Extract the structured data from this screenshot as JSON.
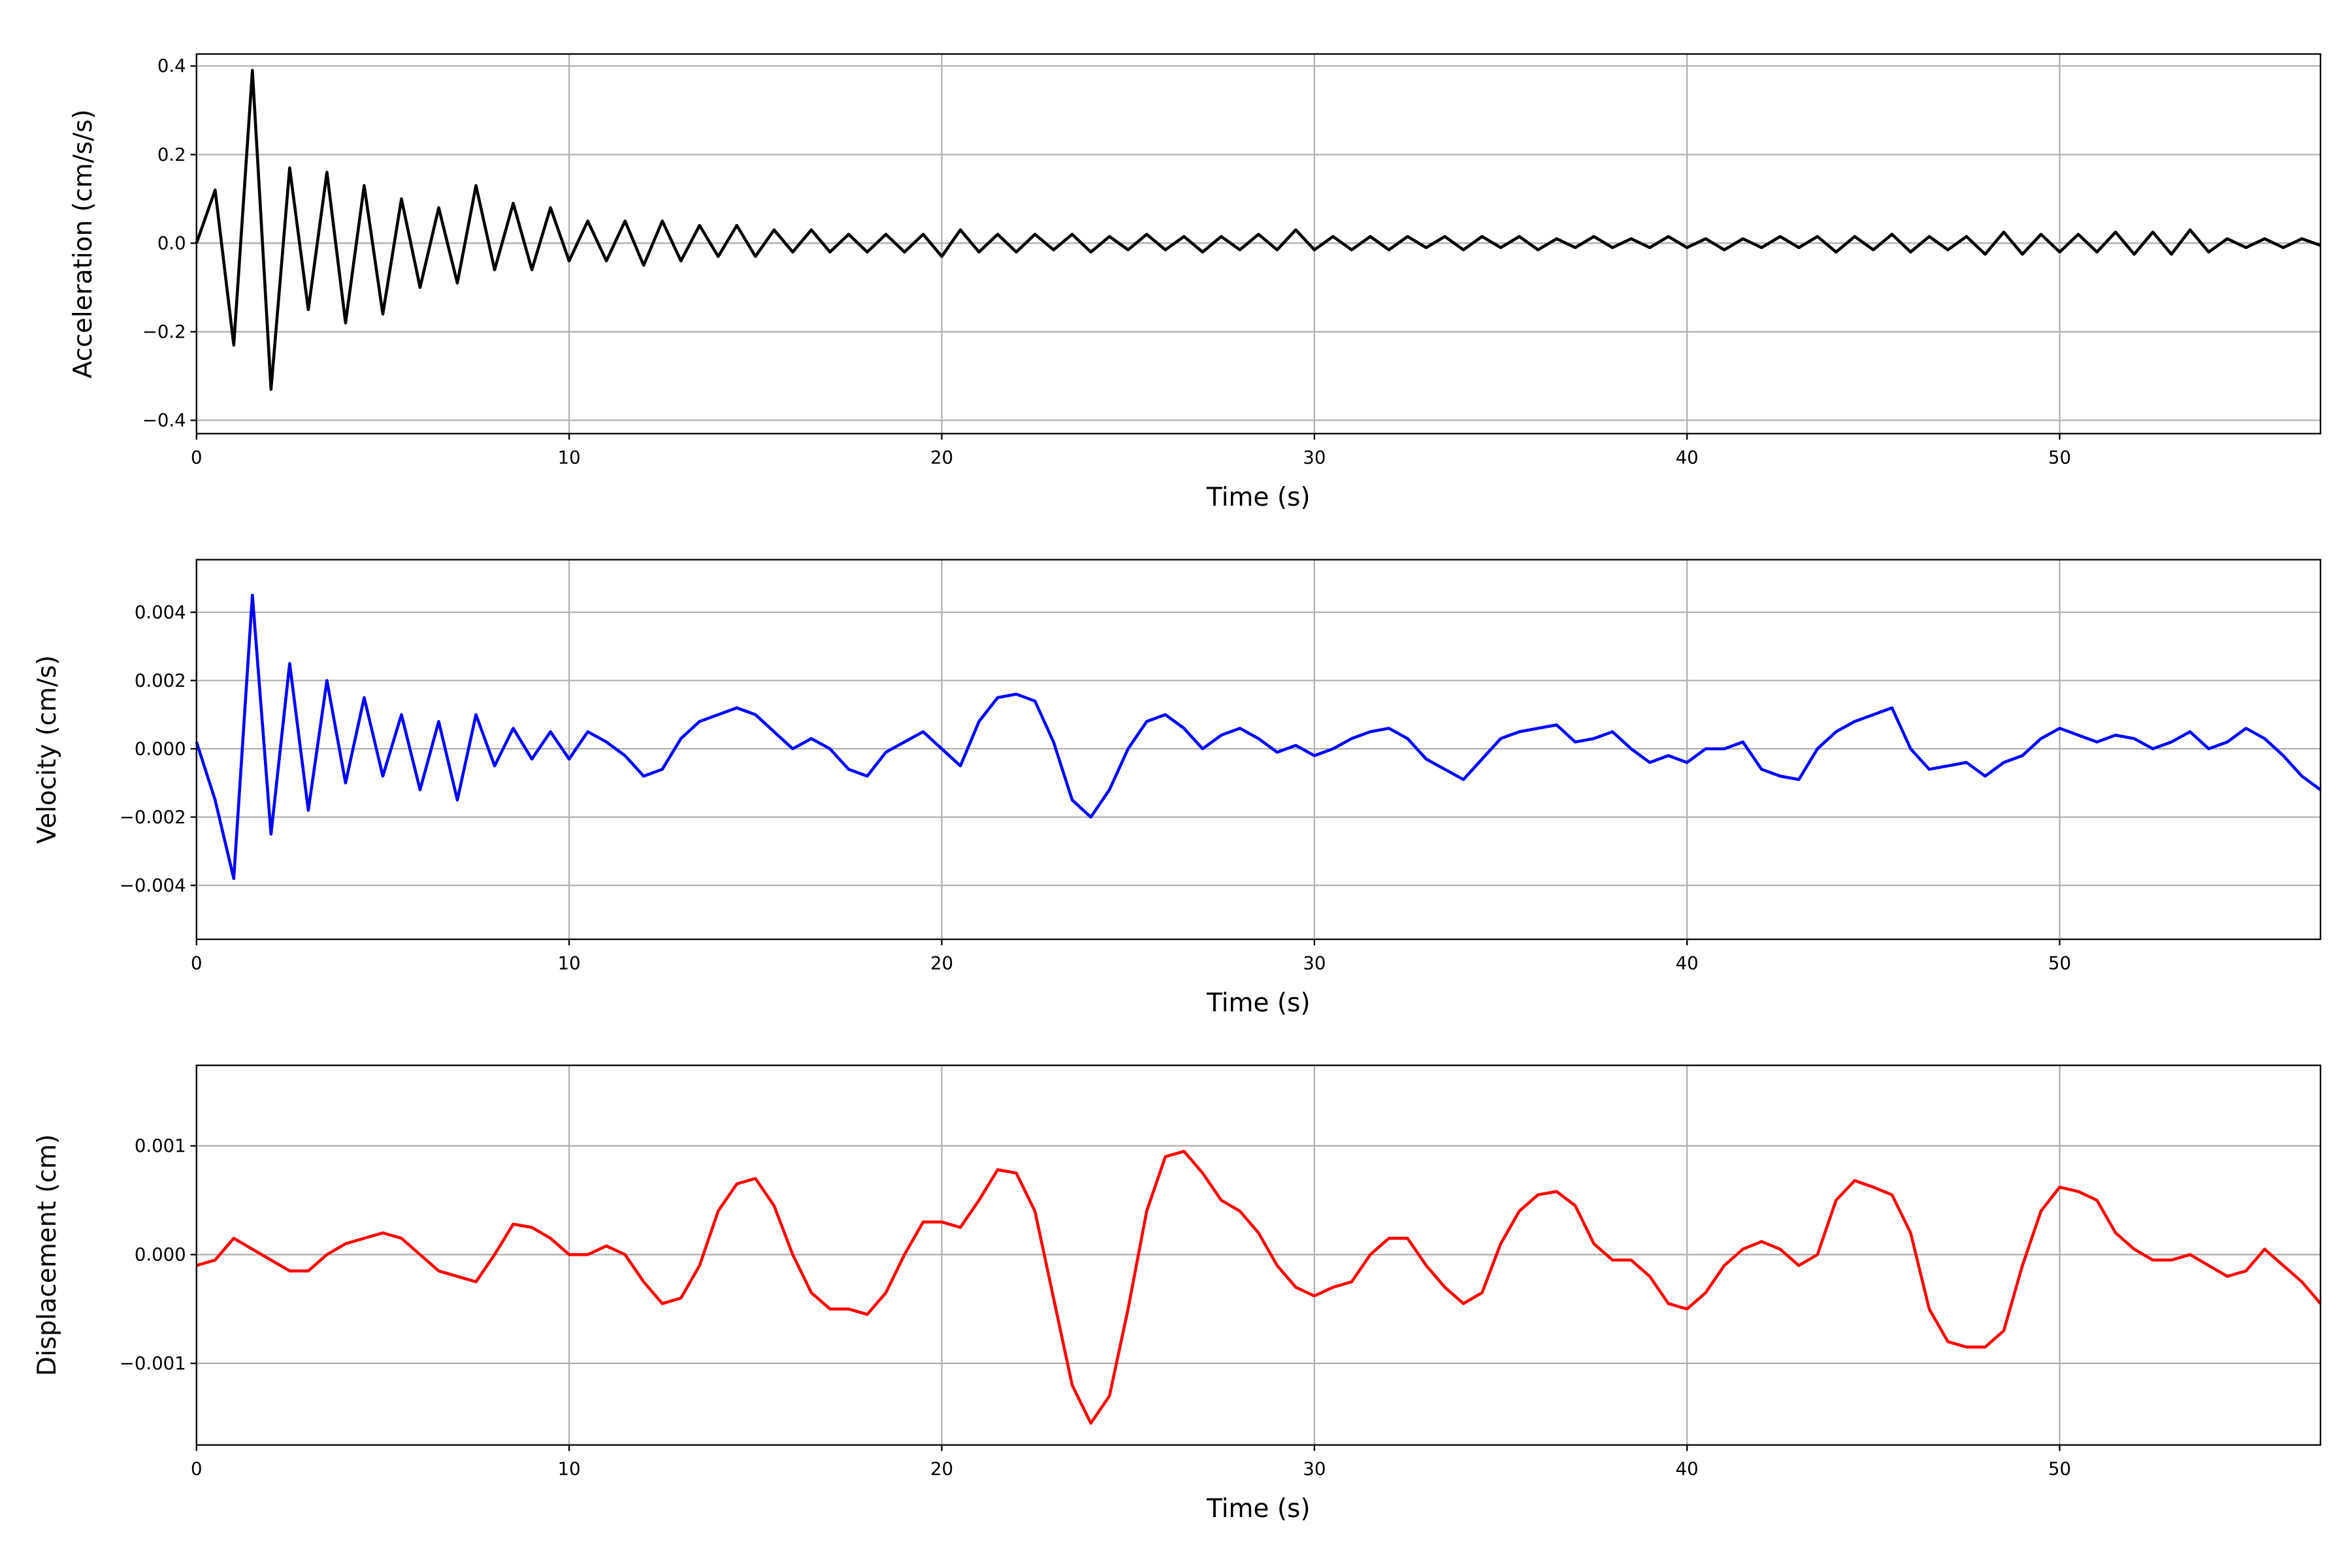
{
  "chart_data": [
    {
      "type": "line",
      "ylabel": "Acceleration (cm/s/s)",
      "xlabel": "Time (s)",
      "color": "#000000",
      "grid": true,
      "xlim": [
        0,
        57
      ],
      "xticks": [
        0,
        10,
        20,
        30,
        40,
        50
      ],
      "ylim": [
        -0.43,
        0.427
      ],
      "yticks": [
        {
          "value": -0.4,
          "label": "−0.4"
        },
        {
          "value": -0.2,
          "label": "−0.2"
        },
        {
          "value": 0,
          "label": "0.0"
        },
        0.2,
        0.4
      ],
      "x": [
        0,
        0.5,
        1,
        1.5,
        2,
        2.5,
        3,
        3.5,
        4,
        4.5,
        5,
        5.5,
        6,
        6.5,
        7,
        7.5,
        8,
        8.5,
        9,
        9.5,
        10,
        10.5,
        11,
        11.5,
        12,
        12.5,
        13,
        13.5,
        14,
        14.5,
        15,
        15.5,
        16,
        16.5,
        17,
        17.5,
        18,
        18.5,
        19,
        19.5,
        20,
        20.5,
        21,
        21.5,
        22,
        22.5,
        23,
        23.5,
        24,
        24.5,
        25,
        25.5,
        26,
        26.5,
        27,
        27.5,
        28,
        28.5,
        29,
        29.5,
        30,
        30.5,
        31,
        31.5,
        32,
        32.5,
        33,
        33.5,
        34,
        34.5,
        35,
        35.5,
        36,
        36.5,
        37,
        37.5,
        38,
        38.5,
        39,
        39.5,
        40,
        40.5,
        41,
        41.5,
        42,
        42.5,
        43,
        43.5,
        44,
        44.5,
        45,
        45.5,
        46,
        46.5,
        47,
        47.5,
        48,
        48.5,
        49,
        49.5,
        50,
        50.5,
        51,
        51.5,
        52,
        52.5,
        53,
        53.5,
        54,
        54.5,
        55,
        55.5,
        56,
        56.5,
        57
      ],
      "values": [
        0,
        0.12,
        -0.23,
        0.39,
        -0.33,
        0.17,
        -0.15,
        0.16,
        -0.18,
        0.13,
        -0.16,
        0.1,
        -0.1,
        0.08,
        -0.09,
        0.13,
        -0.06,
        0.09,
        -0.06,
        0.08,
        -0.04,
        0.05,
        -0.04,
        0.05,
        -0.05,
        0.05,
        -0.04,
        0.04,
        -0.03,
        0.04,
        -0.03,
        0.03,
        -0.02,
        0.03,
        -0.02,
        0.02,
        -0.02,
        0.02,
        -0.02,
        0.02,
        -0.03,
        0.03,
        -0.02,
        0.02,
        -0.02,
        0.02,
        -0.015,
        0.02,
        -0.02,
        0.015,
        -0.015,
        0.02,
        -0.015,
        0.015,
        -0.02,
        0.015,
        -0.015,
        0.02,
        -0.015,
        0.03,
        -0.015,
        0.015,
        -0.015,
        0.015,
        -0.015,
        0.015,
        -0.01,
        0.015,
        -0.015,
        0.015,
        -0.01,
        0.015,
        -0.015,
        0.01,
        -0.01,
        0.015,
        -0.01,
        0.01,
        -0.01,
        0.015,
        -0.01,
        0.01,
        -0.015,
        0.01,
        -0.01,
        0.015,
        -0.01,
        0.015,
        -0.02,
        0.015,
        -0.015,
        0.02,
        -0.02,
        0.015,
        -0.015,
        0.015,
        -0.025,
        0.025,
        -0.025,
        0.02,
        -0.02,
        0.02,
        -0.02,
        0.025,
        -0.025,
        0.025,
        -0.025,
        0.03,
        -0.02,
        0.01,
        -0.01,
        0.01,
        -0.01,
        0.01,
        -0.005
      ]
    },
    {
      "type": "line",
      "ylabel": "Velocity (cm/s)",
      "xlabel": "Time (s)",
      "color": "#0000ff",
      "grid": true,
      "xlim": [
        0,
        57
      ],
      "xticks": [
        0,
        10,
        20,
        30,
        40,
        50
      ],
      "ylim": [
        -0.00558,
        0.00554
      ],
      "yticks": [
        {
          "value": -0.004,
          "label": "−0.004"
        },
        {
          "value": -0.002,
          "label": "−0.002"
        },
        {
          "value": 0,
          "label": "0.000"
        },
        0.002,
        0.004
      ],
      "x": [
        0,
        0.5,
        1,
        1.5,
        2,
        2.5,
        3,
        3.5,
        4,
        4.5,
        5,
        5.5,
        6,
        6.5,
        7,
        7.5,
        8,
        8.5,
        9,
        9.5,
        10,
        10.5,
        11,
        11.5,
        12,
        12.5,
        13,
        13.5,
        14,
        14.5,
        15,
        15.5,
        16,
        16.5,
        17,
        17.5,
        18,
        18.5,
        19,
        19.5,
        20,
        20.5,
        21,
        21.5,
        22,
        22.5,
        23,
        23.5,
        24,
        24.5,
        25,
        25.5,
        26,
        26.5,
        27,
        27.5,
        28,
        28.5,
        29,
        29.5,
        30,
        30.5,
        31,
        31.5,
        32,
        32.5,
        33,
        33.5,
        34,
        34.5,
        35,
        35.5,
        36,
        36.5,
        37,
        37.5,
        38,
        38.5,
        39,
        39.5,
        40,
        40.5,
        41,
        41.5,
        42,
        42.5,
        43,
        43.5,
        44,
        44.5,
        45,
        45.5,
        46,
        46.5,
        47,
        47.5,
        48,
        48.5,
        49,
        49.5,
        50,
        50.5,
        51,
        51.5,
        52,
        52.5,
        53,
        53.5,
        54,
        54.5,
        55,
        55.5,
        56,
        56.5,
        57
      ],
      "values": [
        0.0002,
        -0.0015,
        -0.0038,
        0.0045,
        -0.0025,
        0.0025,
        -0.0018,
        0.002,
        -0.001,
        0.0015,
        -0.0008,
        0.001,
        -0.0012,
        0.0008,
        -0.0015,
        0.001,
        -0.0005,
        0.0006,
        -0.0003,
        0.0005,
        -0.0003,
        0.0005,
        0.0002,
        -0.0002,
        -0.0008,
        -0.0006,
        0.0003,
        0.0008,
        0.001,
        0.0012,
        0.001,
        0.0005,
        0,
        0.0003,
        0,
        -0.0006,
        -0.0008,
        -0.0001,
        0.0002,
        0.0005,
        0,
        -0.0005,
        0.0008,
        0.0015,
        0.0016,
        0.0014,
        0.0002,
        -0.0015,
        -0.002,
        -0.0012,
        0,
        0.0008,
        0.001,
        0.0006,
        0,
        0.0004,
        0.0006,
        0.0003,
        -0.0001,
        0.0001,
        -0.0002,
        0,
        0.0003,
        0.0005,
        0.0006,
        0.0003,
        -0.0003,
        -0.0006,
        -0.0009,
        -0.0003,
        0.0003,
        0.0005,
        0.0006,
        0.0007,
        0.0002,
        0.0003,
        0.0005,
        0,
        -0.0004,
        -0.0002,
        -0.0004,
        0,
        0,
        0.0002,
        -0.0006,
        -0.0008,
        -0.0009,
        0,
        0.0005,
        0.0008,
        0.001,
        0.0012,
        0,
        -0.0006,
        -0.0005,
        -0.0004,
        -0.0008,
        -0.0004,
        -0.0002,
        0.0003,
        0.0006,
        0.0004,
        0.0002,
        0.0004,
        0.0003,
        0,
        0.0002,
        0.0005,
        0,
        0.0002,
        0.0006,
        0.0003,
        -0.0002,
        -0.0008,
        -0.0012
      ]
    },
    {
      "type": "line",
      "ylabel": "Displacement (cm)",
      "xlabel": "Time (s)",
      "color": "#ff0000",
      "grid": true,
      "xlim": [
        0,
        57
      ],
      "xticks": [
        0,
        10,
        20,
        30,
        40,
        50
      ],
      "ylim": [
        -0.00175,
        0.00174
      ],
      "yticks": [
        {
          "value": -0.001,
          "label": "−0.001"
        },
        {
          "value": 0,
          "label": "0.000"
        },
        0.001
      ],
      "x": [
        0,
        0.5,
        1,
        1.5,
        2,
        2.5,
        3,
        3.5,
        4,
        4.5,
        5,
        5.5,
        6,
        6.5,
        7,
        7.5,
        8,
        8.5,
        9,
        9.5,
        10,
        10.5,
        11,
        11.5,
        12,
        12.5,
        13,
        13.5,
        14,
        14.5,
        15,
        15.5,
        16,
        16.5,
        17,
        17.5,
        18,
        18.5,
        19,
        19.5,
        20,
        20.5,
        21,
        21.5,
        22,
        22.5,
        23,
        23.5,
        24,
        24.5,
        25,
        25.5,
        26,
        26.5,
        27,
        27.5,
        28,
        28.5,
        29,
        29.5,
        30,
        30.5,
        31,
        31.5,
        32,
        32.5,
        33,
        33.5,
        34,
        34.5,
        35,
        35.5,
        36,
        36.5,
        37,
        37.5,
        38,
        38.5,
        39,
        39.5,
        40,
        40.5,
        41,
        41.5,
        42,
        42.5,
        43,
        43.5,
        44,
        44.5,
        45,
        45.5,
        46,
        46.5,
        47,
        47.5,
        48,
        48.5,
        49,
        49.5,
        50,
        50.5,
        51,
        51.5,
        52,
        52.5,
        53,
        53.5,
        54,
        54.5,
        55,
        55.5,
        56,
        56.5,
        57
      ],
      "values": [
        -0.0001,
        -5e-05,
        0.00015,
        5e-05,
        -5e-05,
        -0.00015,
        -0.00015,
        0,
        0.0001,
        0.00015,
        0.0002,
        0.00015,
        0,
        -0.00015,
        -0.0002,
        -0.00025,
        0,
        0.00028,
        0.00025,
        0.00015,
        0,
        0,
        8e-05,
        0,
        -0.00025,
        -0.00045,
        -0.0004,
        -0.0001,
        0.0004,
        0.00065,
        0.0007,
        0.00045,
        0,
        -0.00035,
        -0.0005,
        -0.0005,
        -0.00055,
        -0.00035,
        0,
        0.0003,
        0.0003,
        0.00025,
        0.0005,
        0.00078,
        0.00075,
        0.0004,
        -0.0004,
        -0.0012,
        -0.00155,
        -0.0013,
        -0.0005,
        0.0004,
        0.0009,
        0.00095,
        0.00075,
        0.0005,
        0.0004,
        0.0002,
        -0.0001,
        -0.0003,
        -0.00038,
        -0.0003,
        -0.00025,
        0,
        0.00015,
        0.00015,
        -0.0001,
        -0.0003,
        -0.00045,
        -0.00035,
        0.0001,
        0.0004,
        0.00055,
        0.00058,
        0.00045,
        0.0001,
        -5e-05,
        -5e-05,
        -0.0002,
        -0.00045,
        -0.0005,
        -0.00035,
        -0.0001,
        5e-05,
        0.00012,
        5e-05,
        -0.0001,
        0,
        0.0005,
        0.00068,
        0.00062,
        0.00055,
        0.0002,
        -0.0005,
        -0.0008,
        -0.00085,
        -0.00085,
        -0.0007,
        -0.0001,
        0.0004,
        0.00062,
        0.00058,
        0.0005,
        0.0002,
        5e-05,
        -5e-05,
        -5e-05,
        0,
        -0.0001,
        -0.0002,
        -0.00015,
        5e-05,
        -0.0001,
        -0.00025,
        -0.00045
      ]
    }
  ]
}
